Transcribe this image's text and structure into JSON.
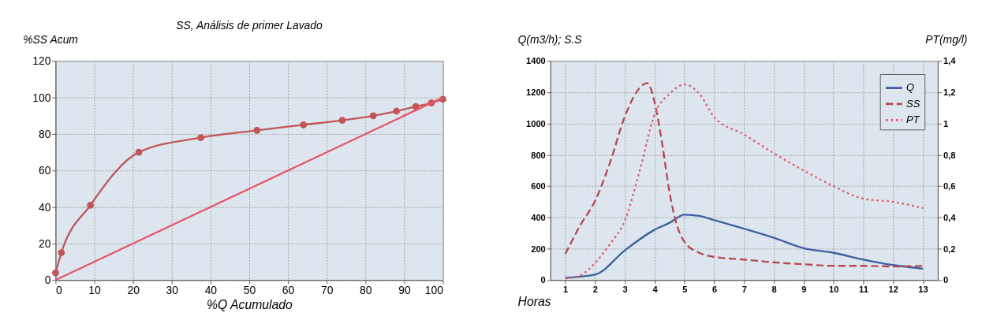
{
  "chart_data": [
    {
      "type": "line",
      "title": "SS, Análisis de primer Lavado",
      "xlabel": "%Q Acumulado",
      "ylabel": "%SS Acum",
      "xlim": [
        0,
        100
      ],
      "xticks": [
        0,
        10,
        20,
        30,
        40,
        50,
        60,
        70,
        80,
        90,
        100
      ],
      "ylim": [
        0,
        120
      ],
      "yticks": [
        0,
        20,
        40,
        60,
        80,
        100,
        120
      ],
      "grid": true,
      "series": [
        {
          "color": "#c0565a",
          "marker": "circle",
          "x": [
            0,
            1.5,
            9,
            21.5,
            37.5,
            52,
            64,
            74,
            82,
            88,
            93,
            97,
            100
          ],
          "values": [
            4,
            15,
            41,
            70,
            78,
            82,
            85,
            87.5,
            90,
            92.5,
            95,
            97,
            99
          ]
        },
        {
          "color": "#e8566a",
          "marker": "none",
          "x": [
            0,
            100
          ],
          "values": [
            0,
            100
          ]
        }
      ]
    },
    {
      "type": "line",
      "xlabel": "Horas",
      "ylabel": "Q(m3/h); S.S",
      "y2label": "PT(mg/l)",
      "xlim": [
        0.5,
        13.5
      ],
      "xticks": [
        1,
        2,
        3,
        4,
        5,
        6,
        7,
        8,
        9,
        10,
        11,
        12,
        13
      ],
      "ylim": [
        0,
        1400
      ],
      "yticks": [
        0,
        200,
        400,
        600,
        800,
        1000,
        1200,
        1400
      ],
      "y2lim": [
        0,
        1.4
      ],
      "y2ticks": [
        0,
        {
          "value": 0.2,
          "label": "0,2"
        },
        {
          "value": 0.4,
          "label": "0,4"
        },
        {
          "value": 0.6,
          "label": "0,6"
        },
        {
          "value": 0.8,
          "label": "0,8"
        },
        1,
        {
          "value": 1.2,
          "label": "1,2"
        },
        {
          "value": 1.4,
          "label": "1,4"
        }
      ],
      "grid": true,
      "legend": "top right",
      "series": [
        {
          "name": "Q",
          "color": "#3f5fa0",
          "line_style": "solid",
          "x": [
            1,
            2,
            3,
            4,
            4.5,
            5,
            5.5,
            6,
            7,
            8,
            9,
            10,
            11,
            12,
            13
          ],
          "values": [
            15,
            35,
            190,
            322,
            366,
            418,
            410,
            383,
            328,
            270,
            204,
            174,
            131,
            96,
            73
          ]
        },
        {
          "name": "SS",
          "color": "#b8484c",
          "line_style": "dashed",
          "x": [
            1,
            1.5,
            2,
            2.5,
            3,
            3.5,
            3.75,
            4,
            4.25,
            4.5,
            4.75,
            5,
            5.5,
            6,
            7,
            8,
            9,
            10,
            11,
            12,
            13
          ],
          "values": [
            166,
            349,
            506,
            750,
            1046,
            1229,
            1259,
            1133,
            872,
            558,
            349,
            244,
            174,
            148,
            131,
            113,
            101,
            91,
            91,
            87,
            91
          ]
        },
        {
          "name": "PT",
          "color": "#e0606e",
          "line_style": "dotted",
          "axis": "y2",
          "x": [
            1,
            1.5,
            2,
            2.5,
            3,
            3.5,
            4,
            4.5,
            5,
            5.5,
            6,
            7,
            8,
            9,
            10,
            11,
            12,
            13
          ],
          "values": [
            0.01,
            0.03,
            0.11,
            0.23,
            0.38,
            0.7,
            1.06,
            1.19,
            1.25,
            1.19,
            1.04,
            0.93,
            0.81,
            0.7,
            0.6,
            0.52,
            0.5,
            0.46
          ]
        }
      ]
    }
  ]
}
